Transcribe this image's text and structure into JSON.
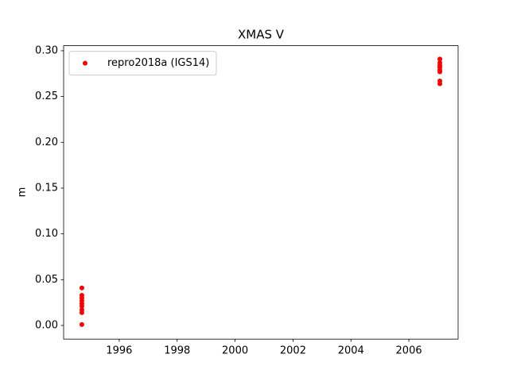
{
  "chart_data": {
    "type": "scatter",
    "title": "XMAS V",
    "y_label": "m",
    "series": [
      {
        "name": "repro2018a (IGS14)",
        "color": "#ff0000",
        "x": [
          1994.71,
          1994.71,
          1994.71,
          1994.71,
          1994.71,
          1994.71,
          1994.71,
          1994.71,
          1994.71,
          2007.07,
          2007.07,
          2007.07,
          2007.07,
          2007.07,
          2007.07,
          2007.07,
          2007.07
        ],
        "values": [
          0.041,
          0.033,
          0.03,
          0.027,
          0.024,
          0.021,
          0.017,
          0.014,
          0.001,
          0.291,
          0.287,
          0.284,
          0.282,
          0.279,
          0.277,
          0.267,
          0.264
        ]
      }
    ],
    "xlim": [
      1994.08,
      2007.7
    ],
    "xticks": [
      1996,
      1998,
      2000,
      2002,
      2004,
      2006
    ],
    "ylim": [
      -0.0149,
      0.3055
    ],
    "yticks": [
      {
        "value": 0,
        "label": "0.00"
      },
      {
        "value": 0.05,
        "label": "0.05"
      },
      {
        "value": 0.1,
        "label": "0.10"
      },
      {
        "value": 0.15,
        "label": "0.15"
      },
      {
        "value": 0.2,
        "label": "0.20"
      },
      {
        "value": 0.25,
        "label": "0.25"
      },
      {
        "value": 0.3,
        "label": "0.30"
      }
    ],
    "grid": false,
    "legend": "upper left"
  }
}
